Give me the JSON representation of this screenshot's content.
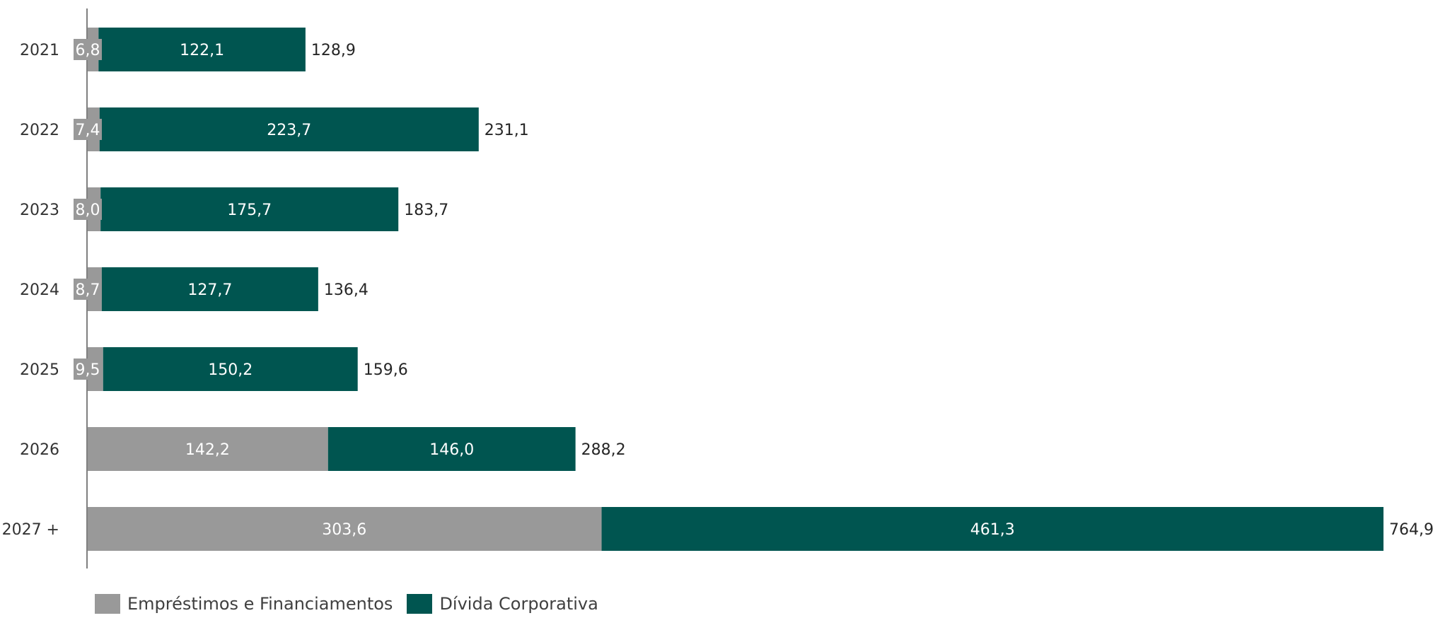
{
  "chart_data": {
    "type": "bar",
    "orientation": "horizontal",
    "stacked": true,
    "categories": [
      "2021",
      "2022",
      "2023",
      "2024",
      "2025",
      "2026",
      "2027 +"
    ],
    "series": [
      {
        "name": "Empréstimos e Financiamentos",
        "color": "#999999",
        "values": [
          6.8,
          7.4,
          8.0,
          8.7,
          9.5,
          142.2,
          303.6
        ],
        "labels": [
          "6,8",
          "7,4",
          "8,0",
          "8,7",
          "9,5",
          "142,2",
          "303,6"
        ]
      },
      {
        "name": "Dívida Corporativa",
        "color": "#005550",
        "values": [
          122.1,
          223.7,
          175.7,
          127.7,
          150.2,
          146.0,
          461.3
        ],
        "labels": [
          "122,1",
          "223,7",
          "175,7",
          "127,7",
          "150,2",
          "146,0",
          "461,3"
        ]
      }
    ],
    "totals": [
      128.9,
      231.1,
      183.7,
      136.4,
      159.6,
      288.2,
      764.9
    ],
    "total_labels": [
      "128,9",
      "231,1",
      "183,7",
      "136,4",
      "159,6",
      "288,2",
      "764,9"
    ],
    "xlim": [
      0,
      764.9
    ],
    "grid": false,
    "legend_position": "bottom-left"
  }
}
